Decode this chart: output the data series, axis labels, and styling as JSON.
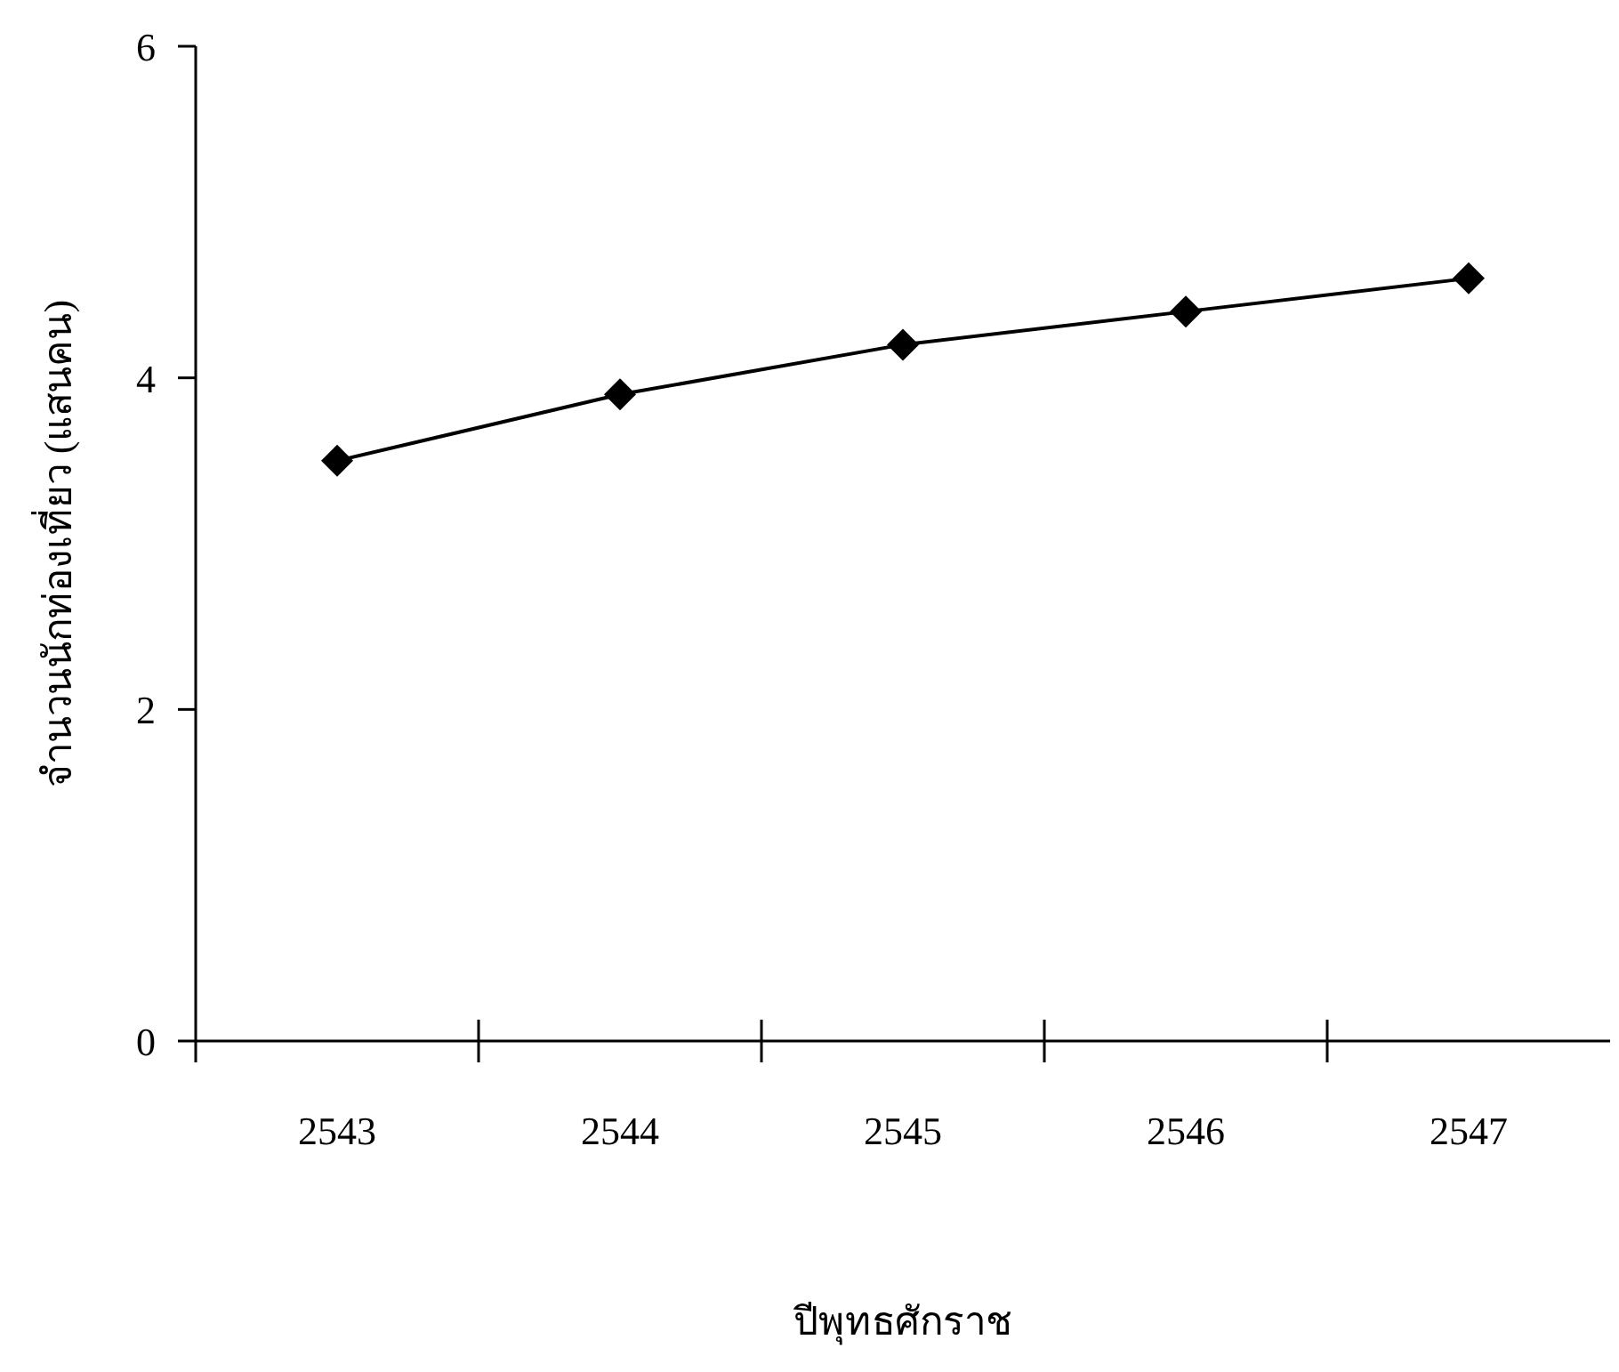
{
  "chart_data": {
    "type": "line",
    "xlabel": "ปีพุทธศักราช",
    "ylabel": "จำนวนนักท่องเที่ยว (แสนคน)",
    "categories": [
      "2543",
      "2544",
      "2545",
      "2546",
      "2547"
    ],
    "series": [
      {
        "color": "#000000",
        "values": [
          3.5,
          3.9,
          4.2,
          4.4,
          4.6
        ]
      }
    ],
    "ylim": [
      0,
      6
    ],
    "yticks": [
      0,
      2,
      4,
      6
    ],
    "grid": false,
    "marker": "diamond",
    "line_style": "solid"
  }
}
